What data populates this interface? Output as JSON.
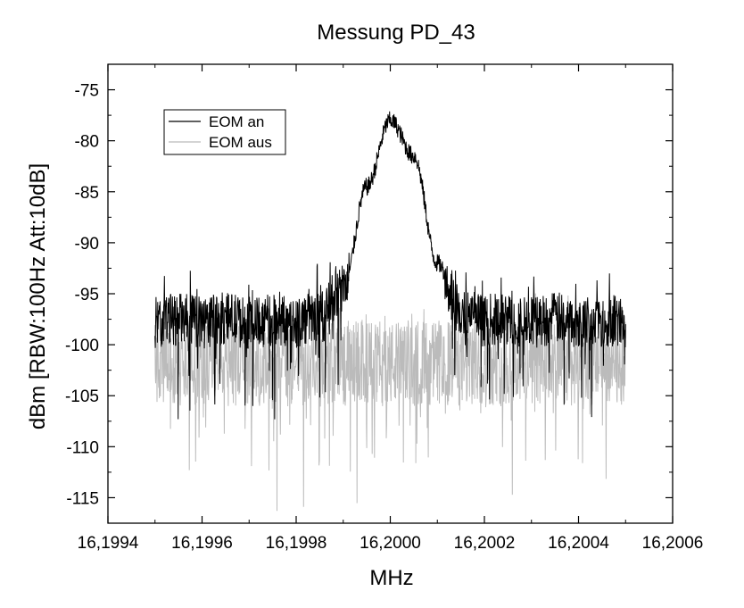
{
  "chart_data": {
    "type": "line",
    "title": "Messung PD_43",
    "xlabel": "MHz",
    "ylabel": "dBm [RBW:100Hz Att:10dB]",
    "xlim": [
      16.1994,
      16.2006
    ],
    "ylim": [
      -117.5,
      -72.5
    ],
    "x_ticks": [
      16.1994,
      16.1996,
      16.1998,
      16.2,
      16.2002,
      16.2004,
      16.2006
    ],
    "x_tick_labels": [
      "16,1994",
      "16,1996",
      "16,1998",
      "16,2000",
      "16,2002",
      "16,2004",
      "16,2006"
    ],
    "y_ticks": [
      -75,
      -80,
      -85,
      -90,
      -95,
      -100,
      -105,
      -110,
      -115
    ],
    "y_tick_labels": [
      "-75",
      "-80",
      "-85",
      "-90",
      "-95",
      "-100",
      "-105",
      "-110",
      "-115"
    ],
    "grid": false,
    "legend_position": "top-left",
    "series": [
      {
        "name": "EOM an",
        "color": "#000000",
        "x": [
          16.1995,
          16.19955,
          16.1996,
          16.19965,
          16.1997,
          16.19975,
          16.1998,
          16.19985,
          16.1999,
          16.19995,
          16.2,
          16.20005,
          16.2001,
          16.20015,
          16.2002,
          16.20025,
          16.2003,
          16.20035,
          16.2004,
          16.20045,
          16.2005
        ],
        "y": [
          -97.8,
          -97.5,
          -97.8,
          -97.4,
          -97.9,
          -97.6,
          -97.7,
          -97.3,
          -94.5,
          -84.5,
          -78.0,
          -81.5,
          -92.0,
          -96.8,
          -97.6,
          -97.5,
          -97.8,
          -97.4,
          -97.7,
          -97.6,
          -97.8
        ]
      },
      {
        "name": "EOM aus",
        "color": "#bbbbbb",
        "x": [
          16.1995,
          16.19955,
          16.1996,
          16.19965,
          16.1997,
          16.19975,
          16.1998,
          16.19985,
          16.1999,
          16.19995,
          16.2,
          16.20005,
          16.2001,
          16.20015,
          16.2002,
          16.20025,
          16.2003,
          16.20035,
          16.2004,
          16.20045,
          16.2005
        ],
        "y": [
          -101.8,
          -102.0,
          -101.6,
          -101.9,
          -101.7,
          -102.1,
          -101.8,
          -101.9,
          -101.7,
          -101.8,
          -101.9,
          -101.7,
          -101.8,
          -102.0,
          -101.7,
          -101.9,
          -101.8,
          -101.6,
          -101.9,
          -101.8,
          -101.7
        ]
      }
    ]
  }
}
